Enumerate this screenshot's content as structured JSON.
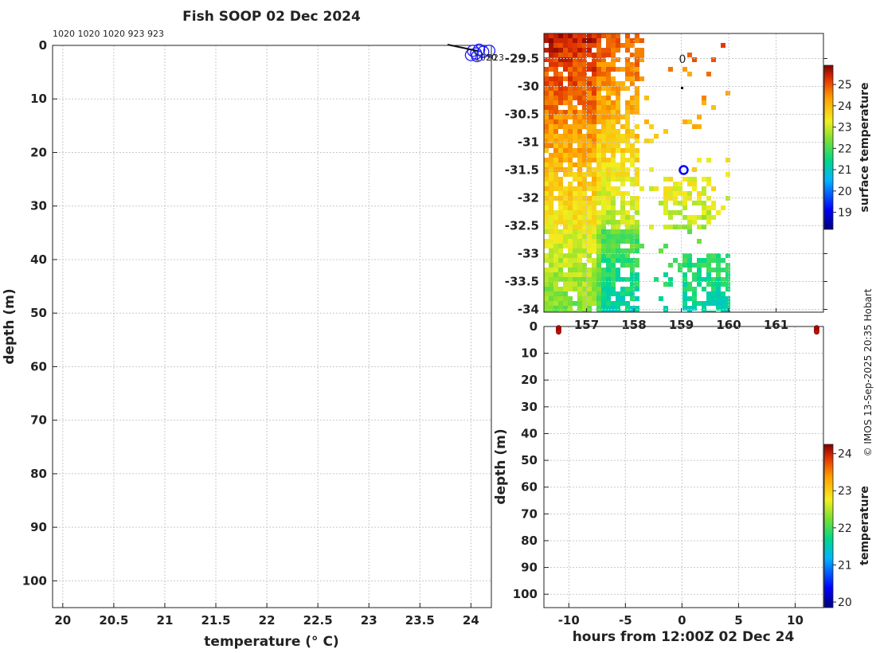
{
  "chart_data": [
    {
      "type": "scatter",
      "title": "Fish SOOP 02 Dec 2024",
      "xlabel": "temperature (° C)",
      "ylabel": "depth (m)",
      "xlim": [
        19.9,
        24.2
      ],
      "ylim": [
        105,
        0
      ],
      "xticks": [
        "20",
        "20.5",
        "21",
        "21.5",
        "22",
        "22.5",
        "23",
        "23.5",
        "24"
      ],
      "yticks": [
        "0",
        "10",
        "20",
        "30",
        "40",
        "50",
        "60",
        "70",
        "80",
        "90",
        "100"
      ],
      "top_labels": "1020 1020 1020 923 923",
      "inline_labels": [
        "1020",
        "923"
      ],
      "grid": true,
      "points": [
        {
          "x": 24.02,
          "y": 1.0
        },
        {
          "x": 24.05,
          "y": 1.5
        },
        {
          "x": 24.08,
          "y": 0.8
        },
        {
          "x": 24.12,
          "y": 1.2
        },
        {
          "x": 24.18,
          "y": 1.0
        },
        {
          "x": 24.0,
          "y": 1.8
        },
        {
          "x": 24.06,
          "y": 2.0
        }
      ],
      "marker_color": "#1a1aff"
    },
    {
      "type": "heatmap",
      "xlim": [
        156.1,
        162.0
      ],
      "ylim": [
        -34.05,
        -29.05
      ],
      "xticks": [
        "157",
        "158",
        "159",
        "160",
        "161"
      ],
      "yticks": [
        "-29.5",
        "-30",
        "-30.5",
        "-31",
        "-31.5",
        "-32",
        "-32.5",
        "-33",
        "-33.5",
        "-34"
      ],
      "colorbar_label": "surface temperature",
      "colorbar_range": [
        18.2,
        25.9
      ],
      "colorbar_ticks": [
        "19",
        "20",
        "21",
        "22",
        "23",
        "24",
        "25"
      ],
      "annotation": "0",
      "marker": {
        "lon": 159.05,
        "lat": -31.5
      },
      "grid": true
    },
    {
      "type": "scatter",
      "xlabel": "hours from 12:00Z 02 Dec 24",
      "ylabel": "depth (m)",
      "xlim": [
        -12.2,
        12.5
      ],
      "ylim": [
        105,
        0
      ],
      "xticks": [
        "-10",
        "-5",
        "0",
        "5",
        "10"
      ],
      "yticks": [
        "0",
        "10",
        "20",
        "30",
        "40",
        "50",
        "60",
        "70",
        "80",
        "90",
        "100"
      ],
      "colorbar_label": "temperature",
      "colorbar_range": [
        19.85,
        24.25
      ],
      "colorbar_ticks": [
        "20",
        "21",
        "22",
        "23",
        "24"
      ],
      "points": [
        {
          "x": -10.9,
          "y": 0.5
        },
        {
          "x": -10.9,
          "y": 1.0
        },
        {
          "x": -10.9,
          "y": 1.5
        },
        {
          "x": -10.9,
          "y": 2.0
        },
        {
          "x": 11.9,
          "y": 0.5
        },
        {
          "x": 11.9,
          "y": 1.0
        },
        {
          "x": 11.9,
          "y": 1.5
        },
        {
          "x": 11.9,
          "y": 2.0
        }
      ],
      "grid": true
    }
  ],
  "copyright": "© IMOS 13-Sep-2025 20:35 Hobart"
}
